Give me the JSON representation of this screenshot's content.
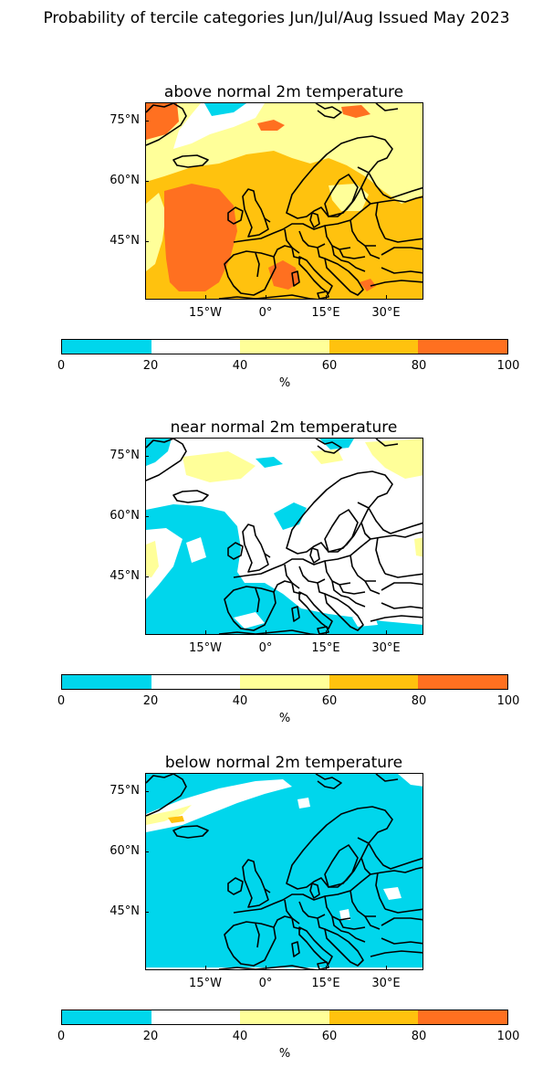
{
  "figure": {
    "suptitle": "Probability of tercile categories Jun/Jul/Aug Issued May 2023"
  },
  "axes": {
    "lat_ticks": [
      "75°N",
      "60°N",
      "45°N"
    ],
    "lon_ticks": [
      "15°W",
      "0°",
      "15°E",
      "30°E"
    ]
  },
  "colorbar": {
    "ticks": [
      "0",
      "20",
      "40",
      "60",
      "80",
      "100"
    ],
    "unit": "%",
    "colors": [
      "#00d6ec",
      "#ffffff",
      "#ffff99",
      "#ffc20e",
      "#ff7020"
    ]
  },
  "panels": [
    {
      "title": "above normal 2m temperature",
      "dominant_category": "60-80",
      "secondary_category": "80-100"
    },
    {
      "title": "near normal 2m temperature",
      "dominant_category": "20-40",
      "secondary_category": "0-20"
    },
    {
      "title": "below normal 2m temperature",
      "dominant_category": "0-20",
      "secondary_category": "20-40"
    }
  ],
  "map_style": {
    "coastline_color": "#000000",
    "land_outline": "black"
  }
}
